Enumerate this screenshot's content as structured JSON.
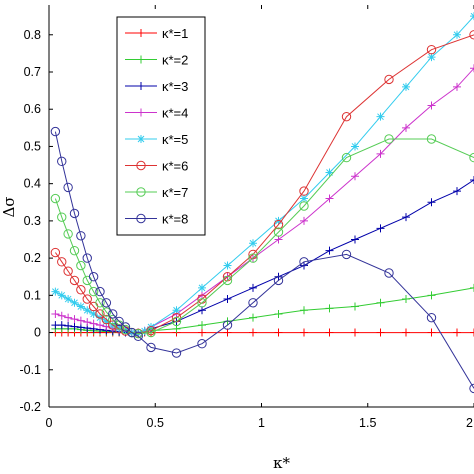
{
  "chart_data": {
    "type": "line",
    "xlabel": "κ*",
    "ylabel": "Δσ",
    "xlim": [
      0,
      2
    ],
    "ylim": [
      -0.2,
      0.88
    ],
    "xticks": [
      "0",
      "0.5",
      "1",
      "1.5",
      "2"
    ],
    "yticks": [
      "-0.2",
      "-0.1",
      "0",
      "0.1",
      "0.2",
      "0.3",
      "0.4",
      "0.5",
      "0.6",
      "0.7",
      "0.8"
    ],
    "grid": false,
    "legend_position": "top-left",
    "series": [
      {
        "name": "κ*=1",
        "color": "#ff0000",
        "marker": "plus",
        "x": [
          0.03,
          0.06,
          0.09,
          0.12,
          0.15,
          0.18,
          0.21,
          0.24,
          0.27,
          0.3,
          0.33,
          0.36,
          0.39,
          0.42,
          0.45,
          0.48,
          0.6,
          0.72,
          0.84,
          0.96,
          1.08,
          1.2,
          1.32,
          1.44,
          1.56,
          1.68,
          1.8,
          1.92,
          2.0
        ],
        "y": [
          0,
          0,
          0,
          0,
          0,
          0,
          0,
          0,
          0,
          0,
          0,
          0,
          0,
          0,
          0,
          0,
          0,
          0,
          0,
          0,
          0,
          0,
          0,
          0,
          0,
          0,
          0,
          0,
          0
        ]
      },
      {
        "name": "κ*=2",
        "color": "#33cc33",
        "marker": "plus",
        "x": [
          0.03,
          0.06,
          0.09,
          0.12,
          0.15,
          0.18,
          0.21,
          0.24,
          0.27,
          0.3,
          0.33,
          0.36,
          0.39,
          0.42,
          0.45,
          0.48,
          0.6,
          0.72,
          0.84,
          0.96,
          1.08,
          1.2,
          1.32,
          1.44,
          1.56,
          1.68,
          1.8,
          2.0
        ],
        "y": [
          0.01,
          0.01,
          0.01,
          0.01,
          0.008,
          0.006,
          0.005,
          0.004,
          0.003,
          0.002,
          0.001,
          0.0,
          0.0,
          0.0,
          0.002,
          0.005,
          0.01,
          0.02,
          0.03,
          0.04,
          0.05,
          0.06,
          0.065,
          0.07,
          0.08,
          0.09,
          0.1,
          0.12
        ]
      },
      {
        "name": "κ*=3",
        "color": "#0000aa",
        "marker": "plus",
        "x": [
          0.03,
          0.06,
          0.09,
          0.12,
          0.15,
          0.18,
          0.21,
          0.24,
          0.27,
          0.3,
          0.33,
          0.36,
          0.39,
          0.42,
          0.45,
          0.48,
          0.6,
          0.72,
          0.84,
          0.96,
          1.08,
          1.2,
          1.32,
          1.44,
          1.56,
          1.68,
          1.8,
          1.92,
          2.0
        ],
        "y": [
          0.02,
          0.02,
          0.018,
          0.016,
          0.014,
          0.012,
          0.01,
          0.008,
          0.006,
          0.004,
          0.002,
          0.0,
          -0.002,
          0.0,
          0.003,
          0.01,
          0.03,
          0.06,
          0.09,
          0.12,
          0.15,
          0.18,
          0.22,
          0.25,
          0.28,
          0.31,
          0.35,
          0.38,
          0.41
        ]
      },
      {
        "name": "κ*=4",
        "color": "#cc33cc",
        "marker": "plus",
        "x": [
          0.03,
          0.06,
          0.09,
          0.12,
          0.15,
          0.18,
          0.21,
          0.24,
          0.27,
          0.3,
          0.33,
          0.36,
          0.39,
          0.42,
          0.45,
          0.48,
          0.6,
          0.72,
          0.84,
          0.96,
          1.08,
          1.2,
          1.32,
          1.44,
          1.56,
          1.68,
          1.8,
          1.92,
          2.0
        ],
        "y": [
          0.05,
          0.045,
          0.04,
          0.036,
          0.032,
          0.028,
          0.024,
          0.02,
          0.016,
          0.012,
          0.008,
          0.004,
          0.0,
          0.0,
          0.005,
          0.015,
          0.05,
          0.1,
          0.15,
          0.2,
          0.25,
          0.3,
          0.36,
          0.42,
          0.48,
          0.55,
          0.61,
          0.66,
          0.71
        ]
      },
      {
        "name": "κ*=5",
        "color": "#33ccee",
        "marker": "star",
        "x": [
          0.03,
          0.06,
          0.09,
          0.12,
          0.15,
          0.18,
          0.21,
          0.24,
          0.27,
          0.3,
          0.33,
          0.36,
          0.39,
          0.42,
          0.45,
          0.48,
          0.6,
          0.72,
          0.84,
          0.96,
          1.08,
          1.2,
          1.32,
          1.44,
          1.56,
          1.68,
          1.8,
          1.92,
          2.0
        ],
        "y": [
          0.11,
          0.1,
          0.09,
          0.08,
          0.07,
          0.06,
          0.05,
          0.04,
          0.03,
          0.02,
          0.012,
          0.006,
          0.0,
          -0.002,
          0.004,
          0.015,
          0.06,
          0.12,
          0.18,
          0.24,
          0.3,
          0.36,
          0.43,
          0.5,
          0.58,
          0.66,
          0.74,
          0.8,
          0.85
        ]
      },
      {
        "name": "κ*=6",
        "color": "#dd3333",
        "marker": "circle",
        "x": [
          0.03,
          0.06,
          0.09,
          0.12,
          0.15,
          0.18,
          0.21,
          0.24,
          0.27,
          0.3,
          0.33,
          0.36,
          0.39,
          0.42,
          0.48,
          0.6,
          0.72,
          0.84,
          0.96,
          1.08,
          1.2,
          1.4,
          1.6,
          1.8,
          2.0
        ],
        "y": [
          0.215,
          0.19,
          0.165,
          0.14,
          0.115,
          0.09,
          0.07,
          0.05,
          0.035,
          0.02,
          0.01,
          0.004,
          0.0,
          -0.002,
          0.005,
          0.04,
          0.09,
          0.15,
          0.21,
          0.29,
          0.38,
          0.58,
          0.68,
          0.76,
          0.8
        ]
      },
      {
        "name": "κ*=7",
        "color": "#55cc55",
        "marker": "circle",
        "x": [
          0.03,
          0.06,
          0.09,
          0.12,
          0.15,
          0.18,
          0.21,
          0.24,
          0.27,
          0.3,
          0.33,
          0.36,
          0.39,
          0.42,
          0.48,
          0.6,
          0.72,
          0.84,
          0.96,
          1.08,
          1.2,
          1.4,
          1.6,
          1.8,
          2.0
        ],
        "y": [
          0.36,
          0.31,
          0.265,
          0.22,
          0.18,
          0.14,
          0.11,
          0.08,
          0.055,
          0.035,
          0.02,
          0.008,
          0.0,
          -0.003,
          0.0,
          0.03,
          0.08,
          0.14,
          0.2,
          0.27,
          0.34,
          0.47,
          0.52,
          0.52,
          0.47
        ]
      },
      {
        "name": "κ*=8",
        "color": "#333399",
        "marker": "circle",
        "x": [
          0.03,
          0.06,
          0.09,
          0.12,
          0.15,
          0.18,
          0.21,
          0.24,
          0.27,
          0.3,
          0.33,
          0.36,
          0.39,
          0.42,
          0.48,
          0.6,
          0.72,
          0.84,
          0.96,
          1.08,
          1.2,
          1.4,
          1.6,
          1.8,
          2.0
        ],
        "y": [
          0.54,
          0.46,
          0.39,
          0.32,
          0.26,
          0.2,
          0.15,
          0.11,
          0.08,
          0.05,
          0.03,
          0.015,
          0.0,
          -0.01,
          -0.04,
          -0.055,
          -0.03,
          0.02,
          0.08,
          0.14,
          0.19,
          0.21,
          0.16,
          0.04,
          -0.15
        ]
      }
    ]
  }
}
